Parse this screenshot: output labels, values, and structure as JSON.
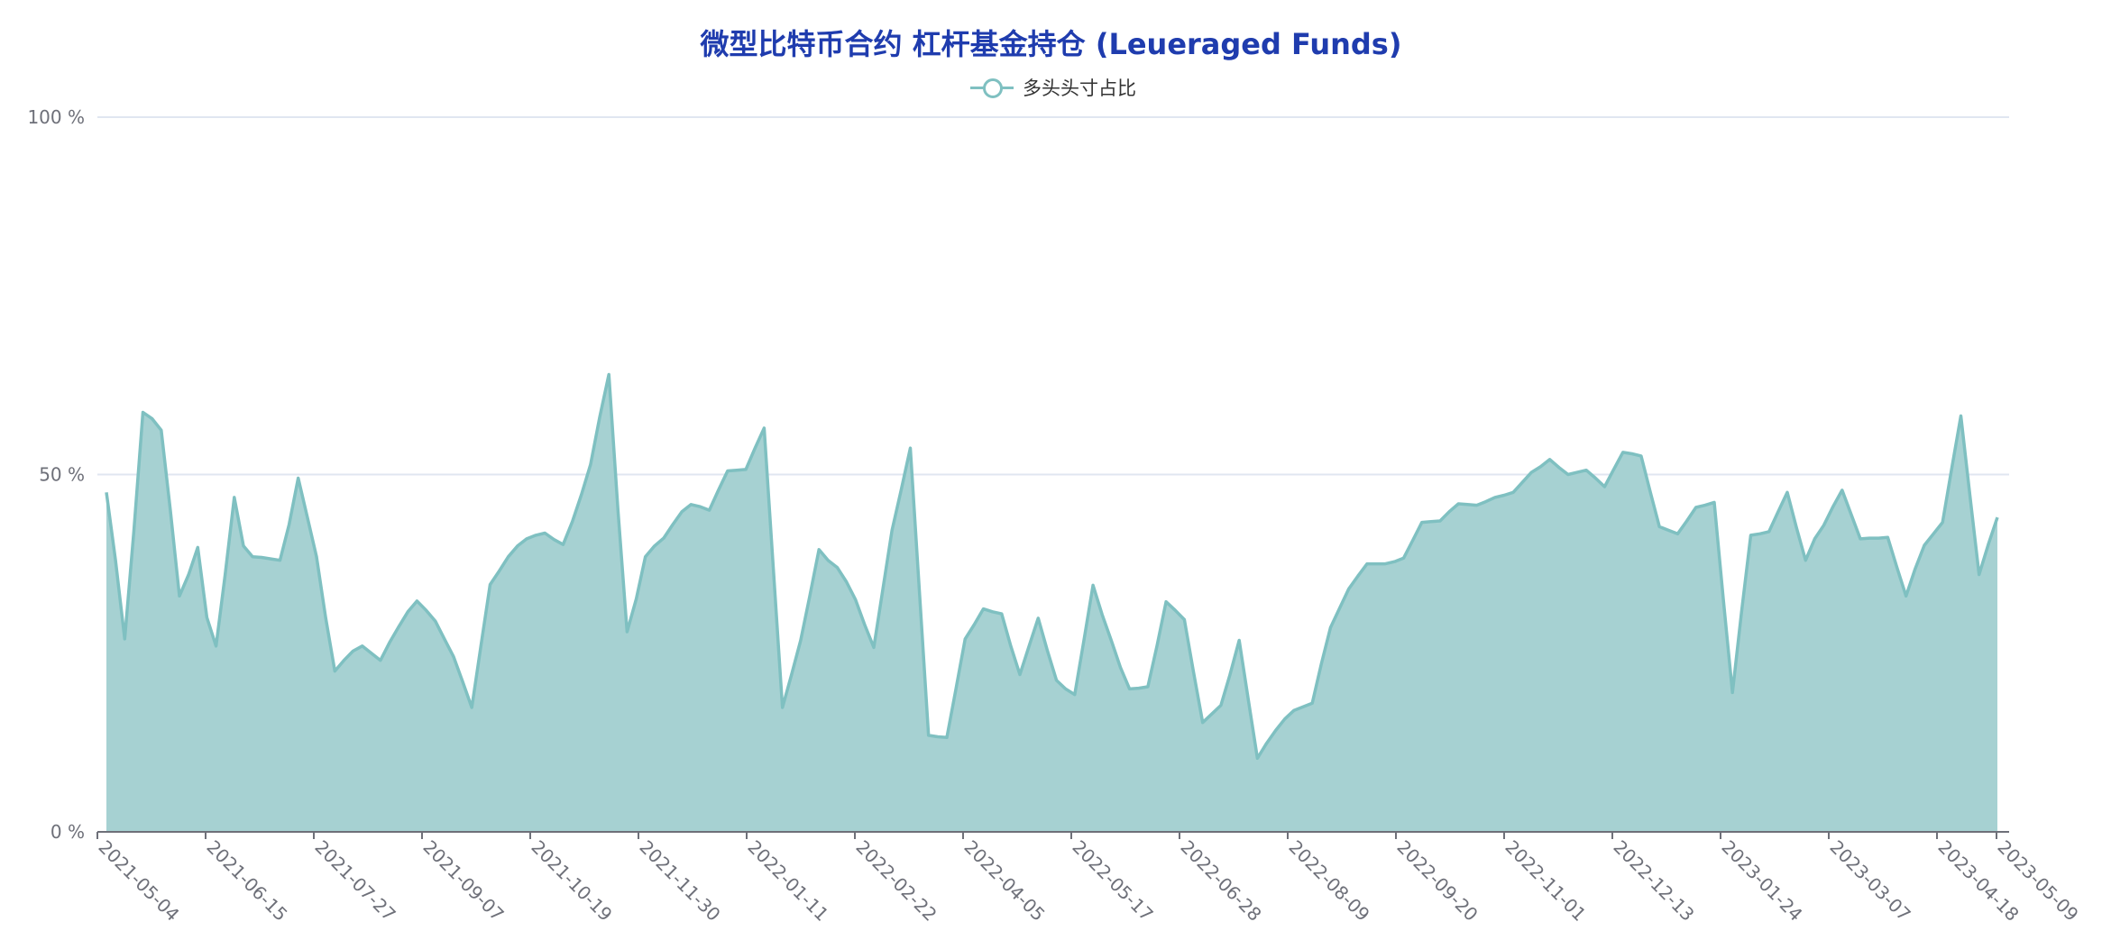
{
  "chart_data": {
    "type": "area",
    "title": "微型比特币合约 杠杆基金持仓 (Leueraged Funds)",
    "legend": [
      "多头头寸占比"
    ],
    "legend_position": "top-center",
    "color": "#7fc0c1",
    "fill_color": "#a6d1d2",
    "grid": true,
    "ylim": [
      0,
      100
    ],
    "y_ticks": [
      0,
      50,
      100
    ],
    "y_tick_labels": [
      "0 %",
      "50 %",
      "100 %"
    ],
    "x_tick_labels": [
      "2021-05-04",
      "2021-06-15",
      "2021-07-27",
      "2021-09-07",
      "2021-10-19",
      "2021-11-30",
      "2022-01-11",
      "2022-02-22",
      "2022-04-05",
      "2022-05-17",
      "2022-06-28",
      "2022-08-09",
      "2022-09-20",
      "2022-11-01",
      "2022-12-13",
      "2023-01-24",
      "2023-03-07",
      "2023-04-18",
      "2023-05-09"
    ],
    "series": [
      {
        "name": "多头头寸占比",
        "values": [
          47.5,
          38,
          27,
          42,
          58.7,
          57.8,
          56.2,
          45,
          33,
          36,
          39.8,
          30,
          26,
          36,
          46.8,
          40,
          38.5,
          38.4,
          38.2,
          38,
          43,
          49.5,
          44,
          38.5,
          30,
          22.5,
          24,
          25.3,
          26,
          25,
          24,
          26.5,
          28.7,
          30.8,
          32.3,
          31,
          29.5,
          27,
          24.5,
          21,
          17.4,
          26,
          34.6,
          36.5,
          38.5,
          40,
          41,
          41.5,
          41.8,
          40.9,
          40.2,
          43.4,
          47.2,
          51.4,
          58,
          64,
          45,
          28,
          32.6,
          38.5,
          40,
          41.1,
          43,
          44.8,
          45.8,
          45.5,
          45,
          47.8,
          50.5,
          50.6,
          50.7,
          53.7,
          56.5,
          37,
          17.4,
          22,
          26.8,
          33,
          39.5,
          38,
          37,
          35,
          32.5,
          29,
          25.8,
          34,
          42.2,
          47.8,
          53.7,
          33.6,
          13.5,
          13.3,
          13.2,
          20,
          27,
          29,
          31.2,
          30.8,
          30.5,
          26,
          22,
          26,
          29.9,
          25.4,
          21.2,
          20,
          19.2,
          26.8,
          34.5,
          30.4,
          26.8,
          23,
          20,
          20.1,
          20.3,
          26,
          32.2,
          31,
          29.7,
          22.4,
          15.3,
          16.5,
          17.7,
          22,
          26.8,
          18.5,
          10.3,
          12.4,
          14.2,
          15.8,
          17,
          17.5,
          18,
          23.5,
          28.6,
          31.3,
          34,
          35.8,
          37.5,
          37.5,
          37.5,
          37.8,
          38.3,
          40.8,
          43.3,
          43.4,
          43.5,
          44.8,
          45.9,
          45.8,
          45.7,
          46.2,
          46.8,
          47.1,
          47.5,
          48.9,
          50.3,
          51.1,
          52.1,
          51,
          50,
          50.3,
          50.6,
          49.5,
          48.3,
          50.7,
          53.1,
          52.9,
          52.6,
          47.6,
          42.7,
          42.2,
          41.7,
          43.5,
          45.4,
          45.7,
          46.1,
          32.5,
          19.5,
          30.8,
          41.5,
          41.7,
          42,
          44.8,
          47.5,
          42.6,
          38,
          41,
          42.9,
          45.5,
          47.8,
          44.4,
          41,
          41.1,
          41.1,
          41.2,
          37,
          33,
          36.8,
          40.1,
          41.7,
          43.3,
          50.8,
          58.2,
          47,
          36,
          40.2,
          44
        ],
        "color": "#7fc0c1"
      }
    ]
  }
}
